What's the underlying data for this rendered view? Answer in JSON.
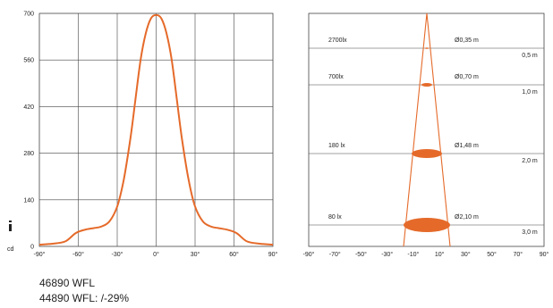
{
  "colors": {
    "accent": "#e56a2a",
    "grid": "#444444",
    "text": "#222222"
  },
  "chart_data": [
    {
      "type": "line",
      "x_tick_labels": [
        "-90°",
        "-60°",
        "-30°",
        "0°",
        "30°",
        "60°",
        "90°"
      ],
      "y_tick_labels": [
        "0",
        "140",
        "280",
        "420",
        "560",
        "700"
      ],
      "ylabel": "cd",
      "xlim": [
        -90,
        90
      ],
      "ylim": [
        0,
        700
      ],
      "grid": true,
      "series": [
        {
          "x": [
            -90,
            -80,
            -70,
            -62,
            -55,
            -48,
            -42,
            -36,
            -30,
            -25,
            -20,
            -16,
            -12,
            -8,
            -4,
            0,
            4,
            8,
            12,
            16,
            20,
            25,
            30,
            36,
            42,
            48,
            55,
            62,
            70,
            80,
            90
          ],
          "values": [
            5,
            8,
            15,
            40,
            50,
            55,
            60,
            75,
            120,
            200,
            320,
            440,
            560,
            640,
            685,
            695,
            685,
            640,
            560,
            440,
            320,
            200,
            120,
            75,
            60,
            55,
            50,
            40,
            15,
            8,
            5
          ]
        }
      ]
    },
    {
      "type": "beam_diagram",
      "x_tick_labels": [
        "-90°",
        "-70°",
        "-50°",
        "-30°",
        "-10°",
        "10°",
        "30°",
        "50°",
        "70°",
        "90°"
      ],
      "rows": [
        {
          "illuminance": "2700lx",
          "diameter": "Ø0,35 m",
          "distance": "0,5 m"
        },
        {
          "illuminance": "700lx",
          "diameter": "Ø0,70 m",
          "distance": "1,0 m"
        },
        {
          "illuminance": "180 lx",
          "diameter": "Ø1,48 m",
          "distance": "2,0 m"
        },
        {
          "illuminance": "80 lx",
          "diameter": "Ø2,10 m",
          "distance": "3,0 m"
        }
      ]
    }
  ],
  "captions": [
    "46890 WFL",
    "44890 WFL: /-29%"
  ]
}
